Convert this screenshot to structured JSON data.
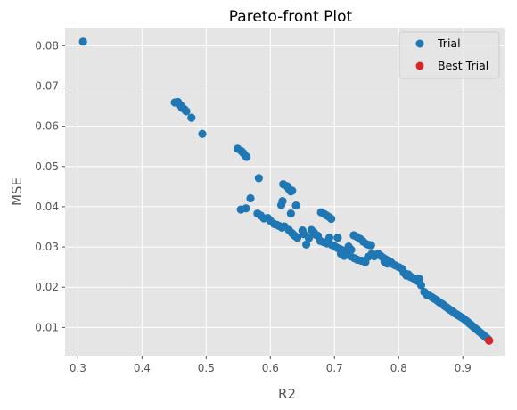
{
  "chart_data": {
    "type": "scatter",
    "title": "Pareto-front Plot",
    "xlabel": "R2",
    "ylabel": "MSE",
    "xlim": [
      0.28,
      0.965
    ],
    "ylim": [
      0.003,
      0.0845
    ],
    "xticks": [
      0.3,
      0.4,
      0.5,
      0.6,
      0.7,
      0.8,
      0.9
    ],
    "xtick_labels": [
      "0.3",
      "0.4",
      "0.5",
      "0.6",
      "0.7",
      "0.8",
      "0.9"
    ],
    "yticks": [
      0.01,
      0.02,
      0.03,
      0.04,
      0.05,
      0.06,
      0.07,
      0.08
    ],
    "ytick_labels": [
      "0.01",
      "0.02",
      "0.03",
      "0.04",
      "0.05",
      "0.06",
      "0.07",
      "0.08"
    ],
    "grid": true,
    "legend_position": "top-right",
    "style": {
      "plot_background": "#e5e5e5",
      "grid_color": "#ffffff"
    },
    "series": [
      {
        "name": "Trial",
        "color": "#1f77b4",
        "points": [
          [
            0.308,
            0.081
          ],
          [
            0.451,
            0.0659
          ],
          [
            0.456,
            0.066
          ],
          [
            0.46,
            0.0652
          ],
          [
            0.462,
            0.0646
          ],
          [
            0.466,
            0.0642
          ],
          [
            0.469,
            0.0637
          ],
          [
            0.477,
            0.0621
          ],
          [
            0.494,
            0.0581
          ],
          [
            0.549,
            0.0544
          ],
          [
            0.555,
            0.0538
          ],
          [
            0.558,
            0.0533
          ],
          [
            0.561,
            0.0527
          ],
          [
            0.563,
            0.0524
          ],
          [
            0.582,
            0.0471
          ],
          [
            0.569,
            0.0421
          ],
          [
            0.554,
            0.0393
          ],
          [
            0.562,
            0.0396
          ],
          [
            0.58,
            0.0383
          ],
          [
            0.585,
            0.0378
          ],
          [
            0.59,
            0.0371
          ],
          [
            0.596,
            0.0372
          ],
          [
            0.6,
            0.0365
          ],
          [
            0.606,
            0.0357
          ],
          [
            0.61,
            0.0355
          ],
          [
            0.614,
            0.0352
          ],
          [
            0.618,
            0.0348
          ],
          [
            0.622,
            0.0351
          ],
          [
            0.617,
            0.0404
          ],
          [
            0.619,
            0.0414
          ],
          [
            0.62,
            0.0456
          ],
          [
            0.626,
            0.0451
          ],
          [
            0.629,
            0.0444
          ],
          [
            0.632,
            0.0438
          ],
          [
            0.634,
            0.044
          ],
          [
            0.632,
            0.0383
          ],
          [
            0.64,
            0.0403
          ],
          [
            0.629,
            0.0342
          ],
          [
            0.634,
            0.0334
          ],
          [
            0.638,
            0.0328
          ],
          [
            0.642,
            0.0323
          ],
          [
            0.65,
            0.0341
          ],
          [
            0.652,
            0.0332
          ],
          [
            0.656,
            0.0306
          ],
          [
            0.66,
            0.0322
          ],
          [
            0.664,
            0.0342
          ],
          [
            0.668,
            0.0336
          ],
          [
            0.67,
            0.0331
          ],
          [
            0.674,
            0.0328
          ],
          [
            0.679,
            0.0386
          ],
          [
            0.684,
            0.0382
          ],
          [
            0.688,
            0.0378
          ],
          [
            0.692,
            0.0374
          ],
          [
            0.695,
            0.037
          ],
          [
            0.678,
            0.0315
          ],
          [
            0.683,
            0.0312
          ],
          [
            0.688,
            0.0309
          ],
          [
            0.692,
            0.0323
          ],
          [
            0.696,
            0.0305
          ],
          [
            0.7,
            0.0302
          ],
          [
            0.704,
            0.0298
          ],
          [
            0.708,
            0.0295
          ],
          [
            0.712,
            0.0292
          ],
          [
            0.715,
            0.0288
          ],
          [
            0.719,
            0.0285
          ],
          [
            0.705,
            0.0323
          ],
          [
            0.71,
            0.0283
          ],
          [
            0.715,
            0.0278
          ],
          [
            0.722,
            0.0301
          ],
          [
            0.726,
            0.0293
          ],
          [
            0.73,
            0.0329
          ],
          [
            0.735,
            0.0325
          ],
          [
            0.74,
            0.032
          ],
          [
            0.745,
            0.0313
          ],
          [
            0.75,
            0.0307
          ],
          [
            0.754,
            0.0305
          ],
          [
            0.757,
            0.0304
          ],
          [
            0.725,
            0.0277
          ],
          [
            0.731,
            0.0272
          ],
          [
            0.736,
            0.0268
          ],
          [
            0.742,
            0.0266
          ],
          [
            0.748,
            0.0262
          ],
          [
            0.752,
            0.0275
          ],
          [
            0.758,
            0.0283
          ],
          [
            0.762,
            0.0277
          ],
          [
            0.768,
            0.0283
          ],
          [
            0.772,
            0.0278
          ],
          [
            0.776,
            0.0273
          ],
          [
            0.78,
            0.0269
          ],
          [
            0.784,
            0.0266
          ],
          [
            0.788,
            0.0262
          ],
          [
            0.778,
            0.0263
          ],
          [
            0.782,
            0.0259
          ],
          [
            0.79,
            0.0258
          ],
          [
            0.795,
            0.0254
          ],
          [
            0.8,
            0.025
          ],
          [
            0.805,
            0.0246
          ],
          [
            0.808,
            0.0236
          ],
          [
            0.81,
            0.0234
          ],
          [
            0.812,
            0.0229
          ],
          [
            0.815,
            0.0232
          ],
          [
            0.818,
            0.0226
          ],
          [
            0.82,
            0.0225
          ],
          [
            0.823,
            0.0222
          ],
          [
            0.826,
            0.0219
          ],
          [
            0.829,
            0.0216
          ],
          [
            0.832,
            0.0221
          ],
          [
            0.835,
            0.0205
          ],
          [
            0.84,
            0.0188
          ],
          [
            0.844,
            0.0181
          ],
          [
            0.848,
            0.0179
          ],
          [
            0.852,
            0.0175
          ],
          [
            0.856,
            0.0171
          ],
          [
            0.86,
            0.0167
          ],
          [
            0.863,
            0.0163
          ],
          [
            0.866,
            0.016
          ],
          [
            0.869,
            0.0157
          ],
          [
            0.872,
            0.0153
          ],
          [
            0.875,
            0.015
          ],
          [
            0.878,
            0.0146
          ],
          [
            0.881,
            0.0143
          ],
          [
            0.884,
            0.014
          ],
          [
            0.887,
            0.0136
          ],
          [
            0.89,
            0.0133
          ],
          [
            0.893,
            0.013
          ],
          [
            0.896,
            0.0127
          ],
          [
            0.899,
            0.0124
          ],
          [
            0.902,
            0.0121
          ],
          [
            0.905,
            0.0117
          ],
          [
            0.908,
            0.0113
          ],
          [
            0.911,
            0.0109
          ],
          [
            0.914,
            0.0105
          ],
          [
            0.917,
            0.0101
          ],
          [
            0.92,
            0.0097
          ],
          [
            0.923,
            0.0093
          ],
          [
            0.926,
            0.0089
          ],
          [
            0.929,
            0.0085
          ],
          [
            0.932,
            0.0081
          ],
          [
            0.935,
            0.0077
          ],
          [
            0.938,
            0.0073
          ],
          [
            0.94,
            0.007
          ]
        ]
      },
      {
        "name": "Best Trial",
        "color": "#d62728",
        "points": [
          [
            0.941,
            0.0067
          ]
        ]
      }
    ]
  }
}
